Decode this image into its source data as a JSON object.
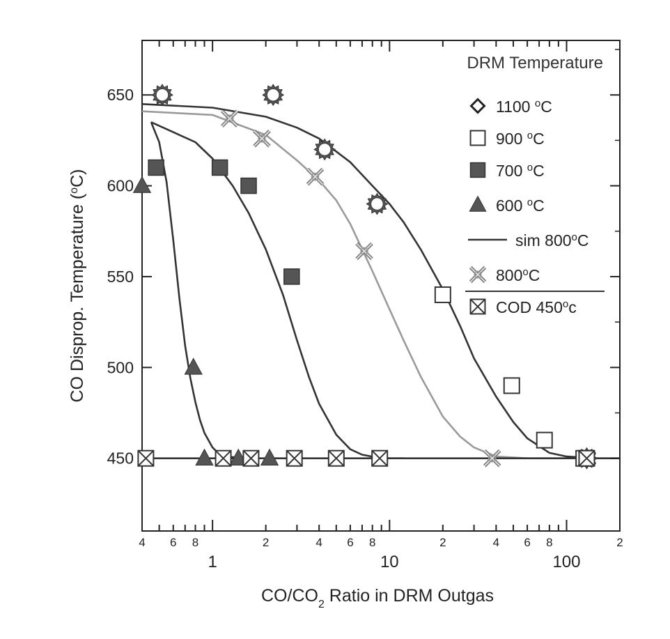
{
  "chart_data": {
    "type": "scatter",
    "xscale": "log",
    "xlim": [
      0.4,
      200
    ],
    "ylim": [
      410,
      680
    ],
    "xlabel_parts": {
      "pre": "CO/CO",
      "sub": "2",
      "post": " Ratio in DRM Outgas"
    },
    "ylabel_parts": {
      "pre": "CO Disprop. Temperature (",
      "sup": "o",
      "post": "C)"
    },
    "x_major_ticks": [
      {
        "value": 1,
        "label": "1"
      },
      {
        "value": 10,
        "label": "10"
      },
      {
        "value": 100,
        "label": "100"
      }
    ],
    "x_minor_ticks": [
      {
        "value": 0.4,
        "label": "4"
      },
      {
        "value": 0.6,
        "label": "6"
      },
      {
        "value": 0.8,
        "label": "8"
      },
      {
        "value": 2,
        "label": "2"
      },
      {
        "value": 4,
        "label": "4"
      },
      {
        "value": 6,
        "label": "6"
      },
      {
        "value": 8,
        "label": "8"
      },
      {
        "value": 20,
        "label": "2"
      },
      {
        "value": 40,
        "label": "4"
      },
      {
        "value": 60,
        "label": "6"
      },
      {
        "value": 80,
        "label": "8"
      },
      {
        "value": 200,
        "label": "2"
      }
    ],
    "y_ticks": [
      {
        "value": 450,
        "label": "450"
      },
      {
        "value": 500,
        "label": "500"
      },
      {
        "value": 550,
        "label": "550"
      },
      {
        "value": 600,
        "label": "600"
      },
      {
        "value": 650,
        "label": "650"
      }
    ],
    "legend": {
      "title": "DRM Temperature",
      "entries": [
        {
          "key": "1100",
          "label": "1100 ",
          "sup": "o",
          "post": "C",
          "marker": "diamond"
        },
        {
          "key": "900",
          "label": "900 ",
          "sup": "o",
          "post": "C",
          "marker": "square-open"
        },
        {
          "key": "700",
          "label": "700 ",
          "sup": "o",
          "post": "C",
          "marker": "square-filled"
        },
        {
          "key": "600",
          "label": "600 ",
          "sup": "o",
          "post": "C",
          "marker": "triangle"
        },
        {
          "key": "sim800",
          "label": "sim 800",
          "sup": "o",
          "post": "C",
          "marker": "line"
        },
        {
          "key": "800",
          "label": "800",
          "sup": "o",
          "post": "C",
          "marker": "x-star"
        },
        {
          "key": "cod450",
          "label": "COD 450",
          "sup": "o",
          "post": "c",
          "marker": "square-x"
        }
      ]
    },
    "series": [
      {
        "key": "1100",
        "marker": "star-open",
        "points": [
          [
            0.52,
            650
          ],
          [
            2.2,
            650
          ],
          [
            4.3,
            620
          ],
          [
            8.5,
            590
          ],
          [
            130,
            450
          ]
        ]
      },
      {
        "key": "900",
        "marker": "square-open",
        "points": [
          [
            20,
            540
          ],
          [
            49,
            490
          ],
          [
            75,
            460
          ],
          [
            125,
            450
          ]
        ]
      },
      {
        "key": "700",
        "marker": "square-filled",
        "points": [
          [
            0.48,
            610
          ],
          [
            1.1,
            610
          ],
          [
            1.6,
            600
          ],
          [
            2.8,
            550
          ],
          [
            5,
            450
          ],
          [
            8.8,
            450
          ]
        ]
      },
      {
        "key": "600",
        "marker": "triangle",
        "points": [
          [
            0.4,
            600
          ],
          [
            0.78,
            500
          ],
          [
            0.9,
            450
          ],
          [
            1.4,
            450
          ],
          [
            2.1,
            450
          ]
        ]
      },
      {
        "key": "800",
        "marker": "x-star",
        "points": [
          [
            1.25,
            637
          ],
          [
            1.9,
            626
          ],
          [
            3.8,
            605
          ],
          [
            7.2,
            564
          ],
          [
            38,
            450
          ],
          [
            130,
            450
          ]
        ]
      },
      {
        "key": "cod450",
        "marker": "square-x",
        "points": [
          [
            0.42,
            450
          ],
          [
            1.15,
            450
          ],
          [
            1.65,
            450
          ],
          [
            2.9,
            450
          ],
          [
            5,
            450
          ],
          [
            8.8,
            450
          ],
          [
            130,
            450
          ]
        ]
      }
    ],
    "curves": [
      {
        "key": "600",
        "color": "#333333",
        "points": [
          [
            0.45,
            635
          ],
          [
            0.5,
            624
          ],
          [
            0.55,
            602
          ],
          [
            0.6,
            570
          ],
          [
            0.65,
            538
          ],
          [
            0.7,
            512
          ],
          [
            0.75,
            494
          ],
          [
            0.8,
            481
          ],
          [
            0.85,
            471
          ],
          [
            0.9,
            464
          ],
          [
            1.0,
            456
          ],
          [
            1.1,
            452
          ],
          [
            1.2,
            451
          ],
          [
            1.5,
            450
          ]
        ]
      },
      {
        "key": "700",
        "color": "#333333",
        "points": [
          [
            0.45,
            635
          ],
          [
            0.8,
            624
          ],
          [
            1.0,
            615
          ],
          [
            1.3,
            600
          ],
          [
            1.6,
            585
          ],
          [
            2.0,
            565
          ],
          [
            2.5,
            540
          ],
          [
            3.0,
            515
          ],
          [
            3.5,
            495
          ],
          [
            4.0,
            480
          ],
          [
            5.0,
            463
          ],
          [
            6.0,
            455
          ],
          [
            7.0,
            452
          ],
          [
            9.0,
            450
          ],
          [
            12,
            450
          ]
        ]
      },
      {
        "key": "sim800",
        "color": "#9a9a9a",
        "points": [
          [
            0.4,
            641
          ],
          [
            1.0,
            639
          ],
          [
            2.0,
            628
          ],
          [
            3.0,
            614
          ],
          [
            4.0,
            603
          ],
          [
            5.0,
            592
          ],
          [
            6.0,
            579
          ],
          [
            8.0,
            553
          ],
          [
            10.0,
            532
          ],
          [
            12.0,
            515
          ],
          [
            15.0,
            495
          ],
          [
            20.0,
            473
          ],
          [
            25.0,
            462
          ],
          [
            30.0,
            456
          ],
          [
            40.0,
            451
          ],
          [
            60.0,
            450
          ],
          [
            200,
            450
          ]
        ]
      },
      {
        "key": "1100",
        "color": "#333333",
        "points": [
          [
            0.4,
            645
          ],
          [
            1.0,
            643
          ],
          [
            2.0,
            638
          ],
          [
            3.0,
            632
          ],
          [
            4.0,
            626
          ],
          [
            6.0,
            613
          ],
          [
            8.0,
            600
          ],
          [
            10.0,
            590
          ],
          [
            12.0,
            580
          ],
          [
            15.0,
            565
          ],
          [
            20.0,
            543
          ],
          [
            25.0,
            523
          ],
          [
            30.0,
            505
          ],
          [
            40.0,
            484
          ],
          [
            50.0,
            470
          ],
          [
            60.0,
            461
          ],
          [
            80.0,
            453
          ],
          [
            100.0,
            451
          ],
          [
            150,
            450
          ]
        ]
      },
      {
        "key": "cod450",
        "color": "#333333",
        "points": [
          [
            0.4,
            450
          ],
          [
            200,
            450
          ]
        ]
      }
    ]
  }
}
